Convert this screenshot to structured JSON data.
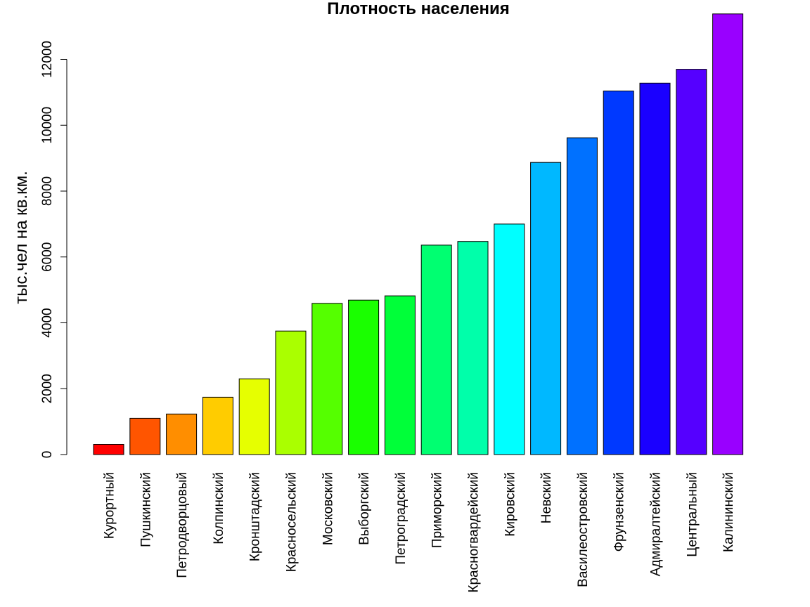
{
  "chart_data": {
    "type": "bar",
    "title": "Плотность населения",
    "xlabel": "",
    "ylabel": "тыс.чел на кв.км.",
    "ylim": [
      0,
      13400
    ],
    "yticks": [
      0,
      2000,
      4000,
      6000,
      8000,
      10000,
      12000
    ],
    "ytick_labels": [
      "0",
      "2000",
      "4000",
      "6000",
      "8000",
      "10000",
      "12000"
    ],
    "grid": false,
    "legend": "none",
    "categories": [
      "Курортный",
      "Пушкинский",
      "Петродворцовый",
      "Колпинский",
      "Кронштадский",
      "Красносельский",
      "Московский",
      "Выборгский",
      "Петроградский",
      "Приморский",
      "Красногвардейский",
      "Кировский",
      "Невский",
      "Василеостровский",
      "Фрунзенский",
      "Адмиралтейский",
      "Центральный",
      "Калининский"
    ],
    "values": [
      310,
      1100,
      1230,
      1740,
      2300,
      3750,
      4590,
      4690,
      4820,
      6360,
      6470,
      7000,
      8870,
      9620,
      11040,
      11280,
      11700,
      13380
    ],
    "colors": [
      "#FF0000",
      "#FF5500",
      "#FF8E00",
      "#FFCC00",
      "#E6FF00",
      "#AAFF00",
      "#55FF00",
      "#1AFF00",
      "#00FF39",
      "#00FF71",
      "#00FFAA",
      "#00FFFF",
      "#00B8FF",
      "#0071FF",
      "#0039FF",
      "#1A00FF",
      "#5500FF",
      "#9900FF"
    ]
  }
}
